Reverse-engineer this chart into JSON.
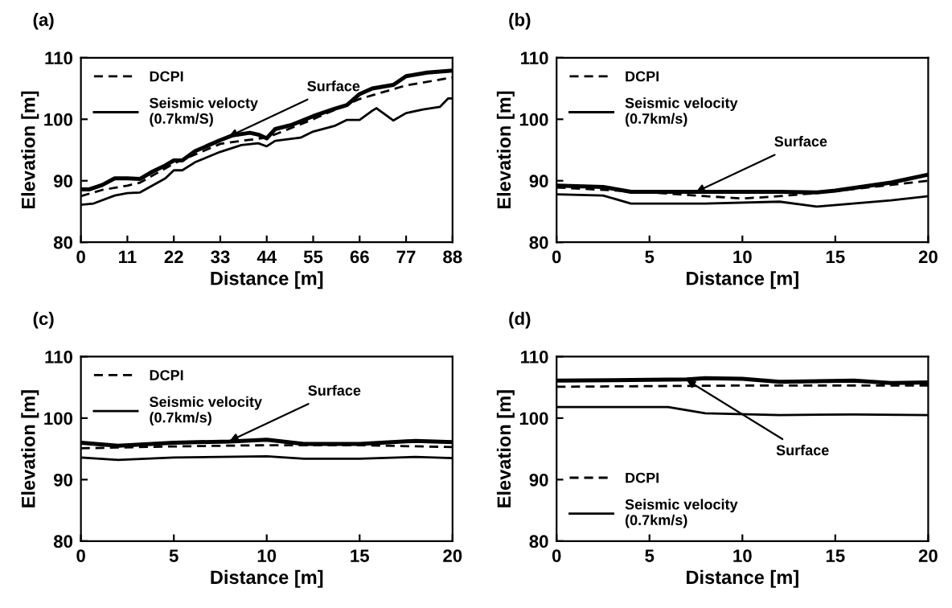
{
  "chart_data": [
    {
      "type": "line",
      "title": "(a)",
      "xlabel": "Distance [m]",
      "ylabel": "Elevation [m]",
      "xlim": [
        0,
        88
      ],
      "ylim": [
        80,
        110
      ],
      "xticks": [
        0,
        11,
        22,
        33,
        44,
        55,
        66,
        77,
        88
      ],
      "yticks": [
        80,
        90,
        100,
        110
      ],
      "grid": false,
      "legend": "top left",
      "annotations": [
        {
          "text": "Surface",
          "x": 35,
          "y": 97.2
        }
      ],
      "series": [
        {
          "color": "#000000",
          "line_style": "solid",
          "x": [
            0,
            2,
            5,
            8,
            11,
            14,
            17,
            20,
            22,
            24,
            27,
            30,
            33,
            36,
            40,
            42,
            44,
            46,
            50,
            55,
            60,
            63,
            66,
            69,
            74,
            77,
            82,
            88
          ],
          "values": [
            88.6,
            88.6,
            89.3,
            90.4,
            90.4,
            90.3,
            91.5,
            92.5,
            93.3,
            93.3,
            94.8,
            95.7,
            96.6,
            97.4,
            97.8,
            97.5,
            96.9,
            98.4,
            99.1,
            100.5,
            101.7,
            102.3,
            104.1,
            105.0,
            105.6,
            107.0,
            107.6,
            107.9
          ]
        },
        {
          "name": "DCPI",
          "color": "#000000",
          "line_style": "dashed",
          "x": [
            0,
            5,
            11,
            14,
            22,
            33,
            38,
            44,
            55,
            66,
            77,
            88
          ],
          "values": [
            87.5,
            88.5,
            89.2,
            89.7,
            92.8,
            96.0,
            96.5,
            97.0,
            100.0,
            103.3,
            105.5,
            106.8
          ]
        },
        {
          "name": "Seismic velocty\n(0.7km/S)",
          "color": "#000000",
          "line_style": "solid",
          "x": [
            0,
            3,
            8,
            11,
            14,
            20,
            22,
            24,
            27,
            33,
            38,
            42,
            44,
            46,
            52,
            55,
            60,
            63,
            66,
            69,
            70,
            74,
            77,
            81,
            85,
            87,
            88
          ],
          "values": [
            86.1,
            86.3,
            87.6,
            88.0,
            88.1,
            90.4,
            91.7,
            91.7,
            93.0,
            94.7,
            95.8,
            96.1,
            95.6,
            96.5,
            97.0,
            98.0,
            98.9,
            99.9,
            99.9,
            101.4,
            101.8,
            99.8,
            101.0,
            101.6,
            102.0,
            103.4,
            103.4
          ]
        }
      ]
    },
    {
      "type": "line",
      "title": "(b)",
      "xlabel": "Distance [m]",
      "ylabel": "Elevation [m]",
      "xlim": [
        0,
        20
      ],
      "ylim": [
        80,
        110
      ],
      "xticks": [
        0,
        5,
        10,
        15,
        20
      ],
      "yticks": [
        80,
        90,
        100,
        110
      ],
      "grid": false,
      "legend": "top left",
      "annotations": [
        {
          "text": "Surface",
          "x": 7.5,
          "y": 88.2
        }
      ],
      "series": [
        {
          "color": "#000000",
          "line_style": "solid",
          "x": [
            0,
            2.5,
            4,
            8,
            12,
            14,
            15,
            18,
            20
          ],
          "values": [
            89.2,
            89.0,
            88.2,
            88.2,
            88.2,
            88.1,
            88.4,
            89.7,
            91.0
          ]
        },
        {
          "name": "DCPI",
          "color": "#000000",
          "line_style": "dashed",
          "x": [
            0,
            4,
            8,
            10,
            12,
            14,
            17,
            20
          ],
          "values": [
            88.9,
            88.3,
            87.5,
            87.1,
            87.5,
            88.0,
            89.0,
            90.0
          ]
        },
        {
          "name": "Seismic velocity\n(0.7km/s)",
          "color": "#000000",
          "line_style": "solid",
          "x": [
            0,
            2.5,
            4,
            8,
            12,
            14,
            18,
            20
          ],
          "values": [
            87.8,
            87.6,
            86.3,
            86.3,
            86.6,
            85.8,
            86.8,
            87.5
          ]
        }
      ]
    },
    {
      "type": "line",
      "title": "(c)",
      "xlabel": "Distance [m]",
      "ylabel": "Elevation [m]",
      "xlim": [
        0,
        20
      ],
      "ylim": [
        80,
        110
      ],
      "xticks": [
        0,
        5,
        10,
        15,
        20
      ],
      "yticks": [
        80,
        90,
        100,
        110
      ],
      "grid": false,
      "legend": "top left",
      "annotations": [
        {
          "text": "Surface",
          "x": 8,
          "y": 96.3
        }
      ],
      "series": [
        {
          "color": "#000000",
          "line_style": "solid",
          "x": [
            0,
            2,
            5,
            8,
            10,
            12,
            15,
            18,
            20
          ],
          "values": [
            96.0,
            95.5,
            96.0,
            96.2,
            96.5,
            95.8,
            95.8,
            96.3,
            96.1
          ]
        },
        {
          "name": "DCPI",
          "color": "#000000",
          "line_style": "dashed",
          "x": [
            0,
            5,
            10,
            15,
            20
          ],
          "values": [
            95.1,
            95.4,
            95.6,
            95.6,
            95.3
          ]
        },
        {
          "name": "Seismic velocity\n(0.7km/s)",
          "color": "#000000",
          "line_style": "solid",
          "x": [
            0,
            2,
            5,
            10,
            12,
            15,
            18,
            20
          ],
          "values": [
            93.6,
            93.2,
            93.6,
            93.8,
            93.4,
            93.4,
            93.7,
            93.5
          ]
        }
      ]
    },
    {
      "type": "line",
      "title": "(d)",
      "xlabel": "Distance [m]",
      "ylabel": "Elevation [m]",
      "xlim": [
        0,
        20
      ],
      "ylim": [
        80,
        110
      ],
      "xticks": [
        0,
        5,
        10,
        15,
        20
      ],
      "yticks": [
        80,
        90,
        100,
        110
      ],
      "grid": false,
      "legend": "bottom left",
      "annotations": [
        {
          "text": "Surface",
          "x": 7,
          "y": 106.2
        }
      ],
      "series": [
        {
          "color": "#000000",
          "line_style": "solid",
          "x": [
            0,
            4,
            7,
            8,
            10,
            12,
            16,
            18,
            20
          ],
          "values": [
            106.1,
            106.2,
            106.3,
            106.5,
            106.4,
            105.9,
            106.1,
            105.7,
            105.8
          ]
        },
        {
          "name": "DCPI",
          "color": "#000000",
          "line_style": "dashed",
          "x": [
            0,
            10,
            20
          ],
          "values": [
            105.1,
            105.3,
            105.3
          ]
        },
        {
          "name": "Seismic velocity\n(0.7km/s)",
          "color": "#000000",
          "line_style": "solid",
          "x": [
            0,
            6,
            8,
            12,
            16,
            20
          ],
          "values": [
            101.8,
            101.8,
            100.8,
            100.5,
            100.6,
            100.5
          ]
        }
      ]
    }
  ]
}
